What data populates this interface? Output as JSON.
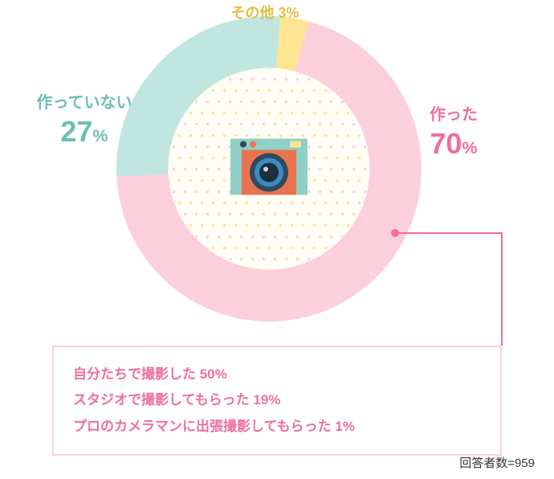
{
  "chart": {
    "type": "donut",
    "inner_radius_ratio": 0.66,
    "background_color": "#ffffff",
    "slices": [
      {
        "key": "made",
        "label": "作った",
        "value": 70,
        "color": "#fbcfdb"
      },
      {
        "key": "notmade",
        "label": "作っていない",
        "value": 27,
        "color": "#c1e5df"
      },
      {
        "key": "other",
        "label": "その他",
        "value": 3,
        "color": "#fde693"
      }
    ],
    "start_angle_deg": -75,
    "direction": "clockwise",
    "center_fill": "#fffef6",
    "center_dots": {
      "color1": "#fde693",
      "color2": "#fbcfdb",
      "spacing": 14,
      "radius": 1.8
    }
  },
  "labels": {
    "made": {
      "text": "作った",
      "value_text": "70",
      "percent_sign": "%",
      "text_color": "#ee6f9f",
      "text_fontsize": 20,
      "value_fontsize": 36
    },
    "notmade": {
      "text": "作っていない",
      "value_text": "27",
      "percent_sign": "%",
      "text_color": "#6cbfb2",
      "text_fontsize": 20,
      "value_fontsize": 36
    },
    "other": {
      "text": "その他 3%",
      "text_color": "#e5bd3f",
      "text_fontsize": 18
    }
  },
  "callout": {
    "dot_color": "#ee6f9f",
    "line_color": "#ee6f9f",
    "line_width": 2
  },
  "breakdown": {
    "border_color": "#fbcfdb",
    "text_color": "#ee6f9f",
    "fontsize": 17,
    "items": [
      "自分たちで撮影した 50%",
      "スタジオで撮影してもらった 19%",
      "プロのカメラマンに出張撮影してもらった 1%"
    ]
  },
  "footer": {
    "text": "回答者数=959",
    "color": "#333333",
    "fontsize": 15
  },
  "camera_icon": {
    "body_color": "#e8734f",
    "accent_color": "#8fcfc6",
    "lens_outer": "#2f4a5c",
    "lens_ring": "#3a8bbf",
    "lens_inner": "#1d2f3a",
    "flash_color": "#fde693",
    "white": "#ffffff"
  }
}
